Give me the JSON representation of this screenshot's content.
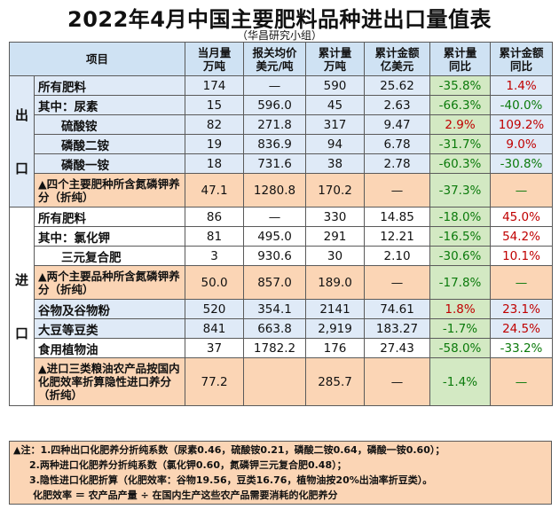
{
  "title": "2022年4月中国主要肥料品种进出口量值表",
  "subtitle": "（华昌研究小组）",
  "headers": {
    "item": "项目",
    "c1a": "当月量",
    "c1b": "万吨",
    "c2a": "报关均价",
    "c2b": "美元/吨",
    "c3a": "累计量",
    "c3b": "万吨",
    "c4a": "累计金额",
    "c4b": "亿美元",
    "c5a": "累计量",
    "c5b": "同比",
    "c6a": "累计金额",
    "c6b": "同比"
  },
  "groups": {
    "export": "出\n\n口",
    "import": "进\n\n口"
  },
  "export_rows": [
    {
      "label": "所有肥料",
      "month": "174",
      "price": "—",
      "cum": "590",
      "amount": "25.62",
      "yoy_q": "-35.8%",
      "yoy_v": "1.4%"
    },
    {
      "label": "其中：尿素",
      "month": "15",
      "price": "596.0",
      "cum": "45",
      "amount": "2.63",
      "yoy_q": "-66.3%",
      "yoy_v": "-40.0%"
    },
    {
      "label": "硫酸铵",
      "month": "82",
      "price": "271.8",
      "cum": "317",
      "amount": "9.47",
      "yoy_q": "2.9%",
      "yoy_v": "109.2%"
    },
    {
      "label": "磷酸二铵",
      "month": "19",
      "price": "836.9",
      "cum": "94",
      "amount": "6.78",
      "yoy_q": "-31.7%",
      "yoy_v": "9.0%"
    },
    {
      "label": "磷酸一铵",
      "month": "18",
      "price": "731.6",
      "cum": "38",
      "amount": "2.78",
      "yoy_q": "-60.3%",
      "yoy_v": "-30.8%"
    },
    {
      "label": "▲四个主要肥种所含氮磷钾养分（折纯）",
      "month": "47.1",
      "price": "1280.8",
      "cum": "170.2",
      "amount": "—",
      "yoy_q": "-37.3%",
      "yoy_v": "—"
    }
  ],
  "import_rows": [
    {
      "label": "所有肥料",
      "month": "86",
      "price": "—",
      "cum": "330",
      "amount": "14.85",
      "yoy_q": "-18.0%",
      "yoy_v": "45.0%"
    },
    {
      "label": "其中：氯化钾",
      "month": "81",
      "price": "495.0",
      "cum": "291",
      "amount": "12.21",
      "yoy_q": "-16.5%",
      "yoy_v": "54.2%"
    },
    {
      "label": "三元复合肥",
      "month": "3",
      "price": "930.6",
      "cum": "30",
      "amount": "2.10",
      "yoy_q": "-30.6%",
      "yoy_v": "10.1%"
    },
    {
      "label": "▲两个主要品种所含氮磷钾养分（折纯）",
      "month": "50.0",
      "price": "857.0",
      "cum": "189.0",
      "amount": "—",
      "yoy_q": "-17.8%",
      "yoy_v": "—"
    },
    {
      "label": "谷物及谷物粉",
      "month": "520",
      "price": "354.1",
      "cum": "2141",
      "amount": "74.61",
      "yoy_q": "1.8%",
      "yoy_v": "23.1%"
    },
    {
      "label": "大豆等豆类",
      "month": "841",
      "price": "663.8",
      "cum": "2,919",
      "amount": "183.27",
      "yoy_q": "-1.7%",
      "yoy_v": "24.5%"
    },
    {
      "label": "食用植物油",
      "month": "37",
      "price": "1782.2",
      "cum": "176",
      "amount": "27.43",
      "yoy_q": "-58.0%",
      "yoy_v": "-33.2%"
    },
    {
      "label": "▲进口三类粮油农产品按国内化肥效率折算隐性进口养分（折纯）",
      "month": "77.2",
      "price": "",
      "cum": "285.7",
      "amount": "—",
      "yoy_q": "-1.4%",
      "yoy_v": "—"
    }
  ],
  "notes": [
    "▲注：1.四种出口化肥养分折纯系数（尿素0.46，硫酸铵0.21，磷酸二铵0.64，磷酸一铵0.60）；",
    "2.两种进口化肥养分折纯系数（氯化钾0.60，氮磷钾三元复合肥0.48）；",
    "3.隐性进口化肥折算（化肥效率：谷物19.56，豆类16.76，植物油按20%出油率折豆类）。",
    "化肥效率 ＝ 农产品产量 ÷ 在国内生产这些农产品需要消耗的化肥养分"
  ],
  "colors": {
    "header": "#cfe2f3",
    "green_cell": "#d3e9c3",
    "highlight_row": "#fbd5b5",
    "red": "#c00000",
    "green": "#0b7a0b"
  }
}
